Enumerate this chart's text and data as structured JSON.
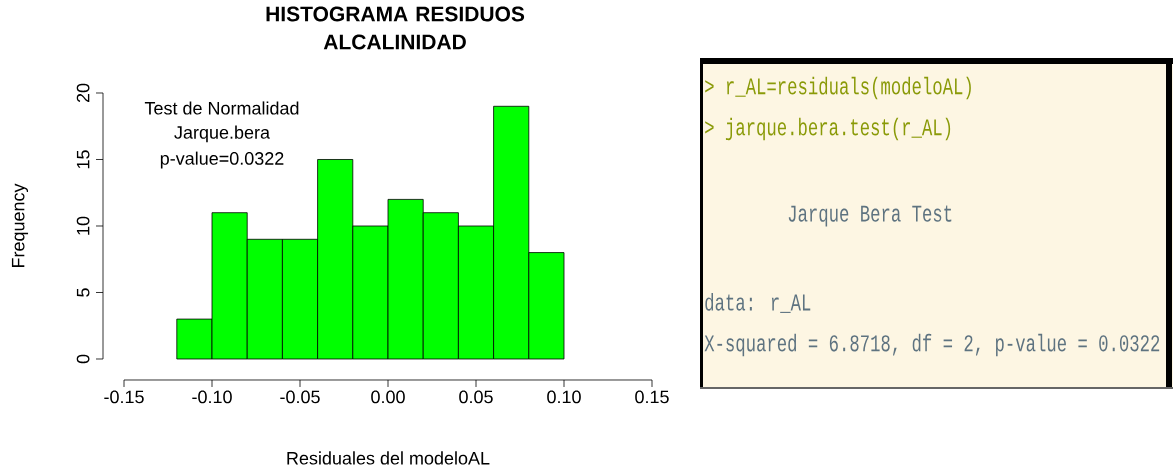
{
  "chart_data": [
    {
      "type": "histogram",
      "title": "HISTOGRAMA RESIDUOS ALCALINIDAD",
      "xlabel": "Residuales del modeloAL",
      "ylabel": "Frequency",
      "bins": [
        -0.12,
        -0.1,
        -0.08,
        -0.06,
        -0.04,
        -0.02,
        0,
        0.02,
        0.04,
        0.06,
        0.08,
        0.1
      ],
      "values": [
        3,
        11,
        9,
        9,
        15,
        10,
        12,
        11,
        10,
        19,
        8
      ],
      "color": "#00ff00",
      "xlim": [
        -0.15,
        0.15
      ],
      "xticks": [
        -0.15,
        {
          "value": -0.1,
          "label": "-0.10"
        },
        -0.05,
        {
          "value": 0,
          "label": "0.00"
        },
        0.05,
        {
          "value": 0.1,
          "label": "0.10"
        },
        0.15
      ],
      "ylim": [
        0,
        20
      ],
      "yticks": [
        0,
        5,
        10,
        15,
        20
      ],
      "annotations": [
        "Test de Normalidad",
        "Jarque.bera",
        "p-value=0.0322"
      ]
    },
    {
      "type": "other",
      "annotations": [
        "> r_AL=residuals(modeloAL)",
        "> jarque.bera.test(r_AL)",
        "Jarque Bera Test",
        "data:  r_AL",
        "X-squared = 6.8718, df = 2, p-value = 0.0322"
      ]
    }
  ]
}
